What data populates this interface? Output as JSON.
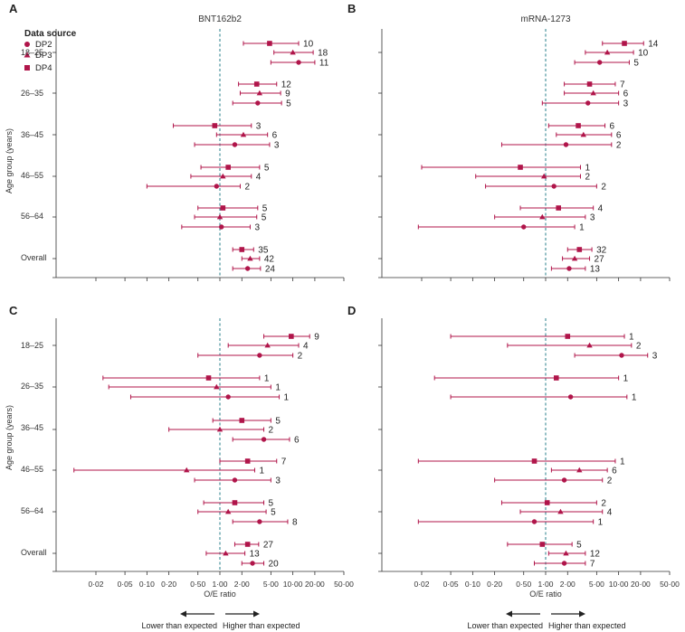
{
  "figure": {
    "y_axis_label": "Age group (years)",
    "x_axis_label": "O/E ratio",
    "lower_label": "Lower than expected",
    "higher_label": "Higher than expected"
  },
  "legend": {
    "title": "Data source",
    "entries": [
      {
        "label": "DP2",
        "shape": "circle"
      },
      {
        "label": "DP3",
        "shape": "triangle"
      },
      {
        "label": "DP4",
        "shape": "square"
      }
    ]
  },
  "colors": {
    "mark": "#b0154a",
    "reference_line": "#3a8a94",
    "axis": "#333333"
  },
  "chart_data": [
    {
      "panel": "A",
      "type": "forest",
      "title": "BNT162b2",
      "x_scale": "log",
      "xlim": [
        0.007,
        50
      ],
      "reference": 1,
      "x_ticks": [
        "0·02",
        "0·05",
        "0·10",
        "0·20",
        "0·50",
        "1·00",
        "2·00",
        "5·00",
        "10·00",
        "20·00",
        "50·00"
      ],
      "groups": [
        {
          "label": "18–25",
          "rows": [
            {
              "source": "DP4",
              "oe": 4.8,
              "lo": 2.1,
              "hi": 12.0,
              "n": "10"
            },
            {
              "source": "DP3",
              "oe": 10.0,
              "lo": 5.5,
              "hi": 19.0,
              "n": "18"
            },
            {
              "source": "DP2",
              "oe": 12.0,
              "lo": 5.0,
              "hi": 20.0,
              "n": "11"
            }
          ]
        },
        {
          "label": "26–35",
          "rows": [
            {
              "source": "DP4",
              "oe": 3.2,
              "lo": 1.8,
              "hi": 6.0,
              "n": "12"
            },
            {
              "source": "DP3",
              "oe": 3.5,
              "lo": 1.9,
              "hi": 6.8,
              "n": "9"
            },
            {
              "source": "DP2",
              "oe": 3.3,
              "lo": 1.5,
              "hi": 7.0,
              "n": "5"
            }
          ]
        },
        {
          "label": "36–45",
          "rows": [
            {
              "source": "DP4",
              "oe": 0.85,
              "lo": 0.23,
              "hi": 2.7,
              "n": "3"
            },
            {
              "source": "DP3",
              "oe": 2.1,
              "lo": 0.9,
              "hi": 4.5,
              "n": "6"
            },
            {
              "source": "DP2",
              "oe": 1.6,
              "lo": 0.45,
              "hi": 4.8,
              "n": "3"
            }
          ]
        },
        {
          "label": "46–55",
          "rows": [
            {
              "source": "DP4",
              "oe": 1.3,
              "lo": 0.55,
              "hi": 3.5,
              "n": "5"
            },
            {
              "source": "DP3",
              "oe": 1.1,
              "lo": 0.4,
              "hi": 2.7,
              "n": "4"
            },
            {
              "source": "DP2",
              "oe": 0.9,
              "lo": 0.1,
              "hi": 1.9,
              "n": "2"
            }
          ]
        },
        {
          "label": "56–64",
          "rows": [
            {
              "source": "DP4",
              "oe": 1.1,
              "lo": 0.5,
              "hi": 3.3,
              "n": "5"
            },
            {
              "source": "DP3",
              "oe": 1.0,
              "lo": 0.45,
              "hi": 3.2,
              "n": "5"
            },
            {
              "source": "DP2",
              "oe": 1.05,
              "lo": 0.3,
              "hi": 2.6,
              "n": "3"
            }
          ]
        },
        {
          "label": "Overall",
          "rows": [
            {
              "source": "DP4",
              "oe": 2.0,
              "lo": 1.5,
              "hi": 2.9,
              "n": "35"
            },
            {
              "source": "DP3",
              "oe": 2.6,
              "lo": 2.0,
              "hi": 3.5,
              "n": "42"
            },
            {
              "source": "DP2",
              "oe": 2.4,
              "lo": 1.5,
              "hi": 3.6,
              "n": "24"
            }
          ]
        }
      ]
    },
    {
      "panel": "B",
      "type": "forest",
      "title": "mRNA-1273",
      "x_scale": "log",
      "xlim": [
        0.007,
        50
      ],
      "reference": 1,
      "x_ticks": [
        "0·02",
        "0·05",
        "0·10",
        "0·20",
        "0·50",
        "1·00",
        "2·00",
        "5·00",
        "10·00",
        "20·00",
        "50·00"
      ],
      "groups": [
        {
          "label": "18–25",
          "rows": [
            {
              "source": "DP4",
              "oe": 12.0,
              "lo": 6.0,
              "hi": 22.0,
              "n": "14"
            },
            {
              "source": "DP3",
              "oe": 7.0,
              "lo": 3.5,
              "hi": 16.0,
              "n": "10"
            },
            {
              "source": "DP2",
              "oe": 5.5,
              "lo": 2.5,
              "hi": 14.0,
              "n": "5"
            }
          ]
        },
        {
          "label": "26–35",
          "rows": [
            {
              "source": "DP4",
              "oe": 4.0,
              "lo": 1.8,
              "hi": 9.0,
              "n": "7"
            },
            {
              "source": "DP3",
              "oe": 4.5,
              "lo": 1.8,
              "hi": 10.0,
              "n": "6"
            },
            {
              "source": "DP2",
              "oe": 3.8,
              "lo": 0.9,
              "hi": 10.0,
              "n": "3"
            }
          ]
        },
        {
          "label": "36–45",
          "rows": [
            {
              "source": "DP4",
              "oe": 2.8,
              "lo": 1.1,
              "hi": 6.5,
              "n": "6"
            },
            {
              "source": "DP3",
              "oe": 3.3,
              "lo": 1.4,
              "hi": 8.0,
              "n": "6"
            },
            {
              "source": "DP2",
              "oe": 1.9,
              "lo": 0.25,
              "hi": 8.0,
              "n": "2"
            }
          ]
        },
        {
          "label": "46–55",
          "rows": [
            {
              "source": "DP4",
              "oe": 0.45,
              "lo": 0.02,
              "hi": 3.0,
              "n": "1"
            },
            {
              "source": "DP3",
              "oe": 0.95,
              "lo": 0.11,
              "hi": 3.0,
              "n": "2"
            },
            {
              "source": "DP2",
              "oe": 1.3,
              "lo": 0.15,
              "hi": 5.0,
              "n": "2"
            }
          ]
        },
        {
          "label": "56–64",
          "rows": [
            {
              "source": "DP4",
              "oe": 1.5,
              "lo": 0.45,
              "hi": 4.5,
              "n": "4"
            },
            {
              "source": "DP3",
              "oe": 0.9,
              "lo": 0.2,
              "hi": 3.5,
              "n": "3"
            },
            {
              "source": "DP2",
              "oe": 0.5,
              "lo": 0.018,
              "hi": 2.5,
              "n": "1"
            }
          ]
        },
        {
          "label": "Overall",
          "rows": [
            {
              "source": "DP4",
              "oe": 2.9,
              "lo": 2.0,
              "hi": 4.3,
              "n": "32"
            },
            {
              "source": "DP3",
              "oe": 2.5,
              "lo": 1.7,
              "hi": 4.0,
              "n": "27"
            },
            {
              "source": "DP2",
              "oe": 2.1,
              "lo": 1.2,
              "hi": 3.5,
              "n": "13"
            }
          ]
        }
      ]
    },
    {
      "panel": "C",
      "type": "forest",
      "title": "",
      "x_scale": "log",
      "xlim": [
        0.007,
        50
      ],
      "reference": 1,
      "x_ticks": [
        "0·02",
        "0·05",
        "0·10",
        "0·20",
        "0·50",
        "1·00",
        "2·00",
        "5·00",
        "10·00",
        "20·00",
        "50·00"
      ],
      "groups": [
        {
          "label": "18–25",
          "rows": [
            {
              "source": "DP4",
              "oe": 9.5,
              "lo": 4.0,
              "hi": 17.0,
              "n": "9"
            },
            {
              "source": "DP3",
              "oe": 4.5,
              "lo": 1.3,
              "hi": 12.0,
              "n": "4"
            },
            {
              "source": "DP2",
              "oe": 3.5,
              "lo": 0.5,
              "hi": 10.0,
              "n": "2"
            }
          ]
        },
        {
          "label": "26–35",
          "rows": [
            {
              "source": "DP4",
              "oe": 0.7,
              "lo": 0.025,
              "hi": 3.5,
              "n": "1"
            },
            {
              "source": "DP3",
              "oe": 0.9,
              "lo": 0.03,
              "hi": 5.0,
              "n": "1"
            },
            {
              "source": "DP2",
              "oe": 1.3,
              "lo": 0.06,
              "hi": 6.5,
              "n": "1"
            }
          ]
        },
        {
          "label": "36–45",
          "rows": [
            {
              "source": "DP4",
              "oe": 2.0,
              "lo": 0.8,
              "hi": 5.0,
              "n": "5"
            },
            {
              "source": "DP3",
              "oe": 1.0,
              "lo": 0.2,
              "hi": 4.0,
              "n": "2"
            },
            {
              "source": "DP2",
              "oe": 4.0,
              "lo": 1.5,
              "hi": 9.0,
              "n": "6"
            }
          ]
        },
        {
          "label": "46–55",
          "rows": [
            {
              "source": "DP4",
              "oe": 2.4,
              "lo": 1.0,
              "hi": 6.0,
              "n": "7"
            },
            {
              "source": "DP3",
              "oe": 0.35,
              "lo": 0.01,
              "hi": 3.0,
              "n": "1"
            },
            {
              "source": "DP2",
              "oe": 1.6,
              "lo": 0.45,
              "hi": 5.0,
              "n": "3"
            }
          ]
        },
        {
          "label": "56–64",
          "rows": [
            {
              "source": "DP4",
              "oe": 1.6,
              "lo": 0.6,
              "hi": 4.0,
              "n": "5"
            },
            {
              "source": "DP3",
              "oe": 1.3,
              "lo": 0.5,
              "hi": 4.3,
              "n": "5"
            },
            {
              "source": "DP2",
              "oe": 3.5,
              "lo": 1.5,
              "hi": 8.5,
              "n": "8"
            }
          ]
        },
        {
          "label": "Overall",
          "rows": [
            {
              "source": "DP4",
              "oe": 2.4,
              "lo": 1.6,
              "hi": 3.4,
              "n": "27"
            },
            {
              "source": "DP3",
              "oe": 1.2,
              "lo": 0.65,
              "hi": 2.2,
              "n": "13"
            },
            {
              "source": "DP2",
              "oe": 2.8,
              "lo": 2.0,
              "hi": 4.0,
              "n": "20"
            }
          ]
        }
      ]
    },
    {
      "panel": "D",
      "type": "forest",
      "title": "",
      "x_scale": "log",
      "xlim": [
        0.007,
        50
      ],
      "reference": 1,
      "x_ticks": [
        "0·02",
        "0·05",
        "0·10",
        "0·20",
        "0·50",
        "1·00",
        "2·00",
        "5·00",
        "10·00",
        "20·00",
        "50·00"
      ],
      "groups": [
        {
          "label": "18–25",
          "rows": [
            {
              "source": "DP4",
              "oe": 2.0,
              "lo": 0.05,
              "hi": 12.0,
              "n": "1"
            },
            {
              "source": "DP3",
              "oe": 4.0,
              "lo": 0.3,
              "hi": 15.0,
              "n": "2"
            },
            {
              "source": "DP2",
              "oe": 11.0,
              "lo": 2.5,
              "hi": 25.0,
              "n": "3"
            }
          ]
        },
        {
          "label": "26–35",
          "rows": [
            {
              "source": "DP4",
              "oe": 1.4,
              "lo": 0.03,
              "hi": 10.0,
              "n": "1"
            },
            {
              "source": "DP2",
              "oe": 2.2,
              "lo": 0.05,
              "hi": 13.0,
              "n": "1"
            }
          ]
        },
        {
          "label": "46–55",
          "rows": [
            {
              "source": "DP4",
              "oe": 0.7,
              "lo": 0.018,
              "hi": 9.0,
              "n": "1"
            },
            {
              "source": "DP3",
              "oe": 2.9,
              "lo": 1.2,
              "hi": 7.0,
              "n": "6"
            },
            {
              "source": "DP2",
              "oe": 1.8,
              "lo": 0.2,
              "hi": 6.0,
              "n": "2"
            }
          ]
        },
        {
          "label": "56–64",
          "rows": [
            {
              "source": "DP4",
              "oe": 1.05,
              "lo": 0.25,
              "hi": 5.0,
              "n": "2"
            },
            {
              "source": "DP3",
              "oe": 1.6,
              "lo": 0.45,
              "hi": 6.0,
              "n": "4"
            },
            {
              "source": "DP2",
              "oe": 0.7,
              "lo": 0.018,
              "hi": 4.5,
              "n": "1"
            }
          ]
        },
        {
          "label": "Overall",
          "rows": [
            {
              "source": "DP4",
              "oe": 0.9,
              "lo": 0.3,
              "hi": 2.3,
              "n": "5"
            },
            {
              "source": "DP3",
              "oe": 1.9,
              "lo": 1.1,
              "hi": 3.5,
              "n": "12"
            },
            {
              "source": "DP2",
              "oe": 1.8,
              "lo": 0.7,
              "hi": 3.5,
              "n": "7"
            }
          ]
        }
      ]
    }
  ]
}
